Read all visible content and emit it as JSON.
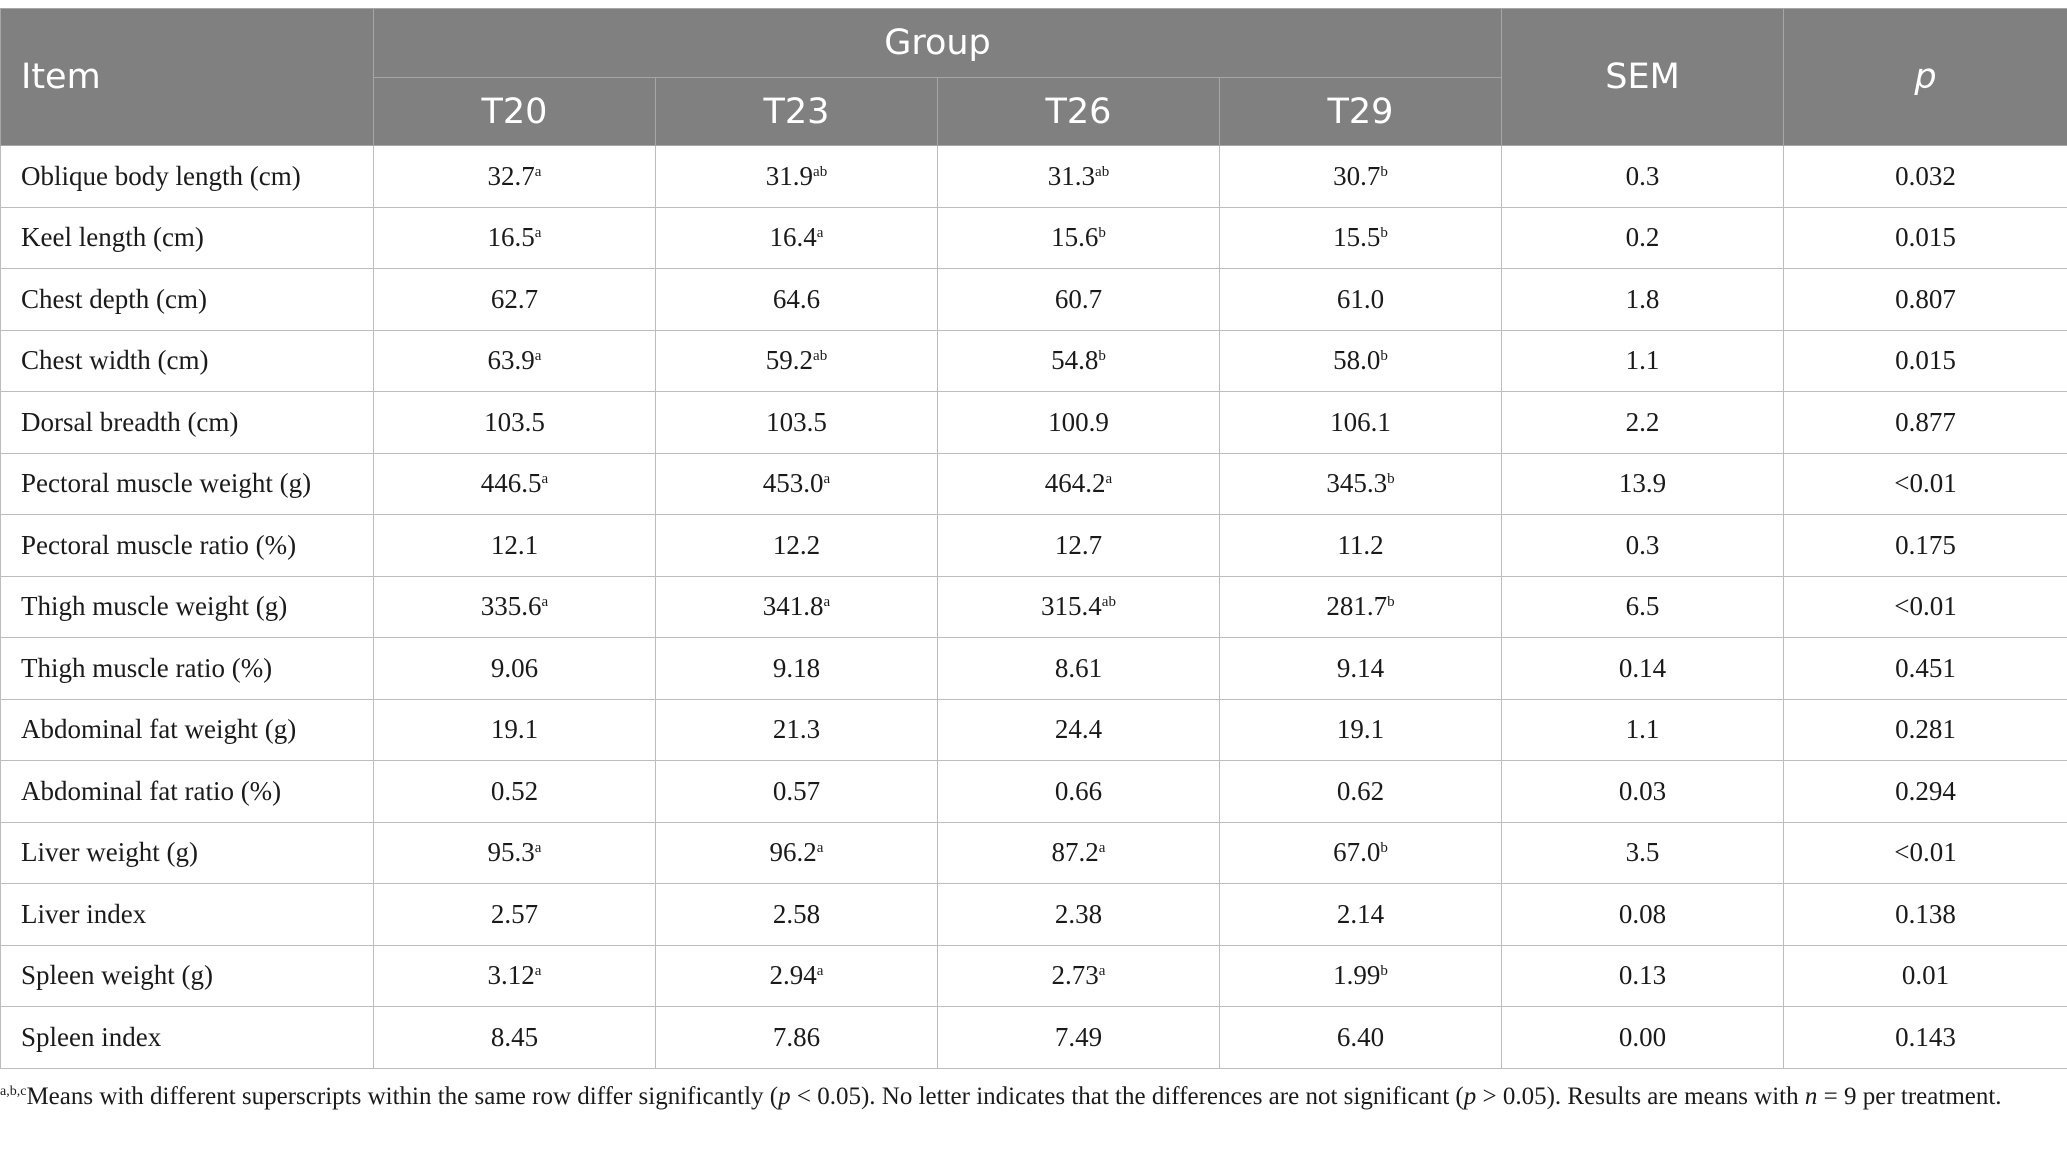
{
  "table": {
    "header": {
      "item": "Item",
      "group": "Group",
      "groups": [
        "T20",
        "T23",
        "T26",
        "T29"
      ],
      "sem": "SEM",
      "p": "p"
    },
    "rows": [
      {
        "item": "Oblique body length (cm)",
        "cells": [
          {
            "v": "32.7",
            "s": "a"
          },
          {
            "v": "31.9",
            "s": "ab"
          },
          {
            "v": "31.3",
            "s": "ab"
          },
          {
            "v": "30.7",
            "s": "b"
          }
        ],
        "sem": "0.3",
        "p": "0.032"
      },
      {
        "item": "Keel length (cm)",
        "cells": [
          {
            "v": "16.5",
            "s": "a"
          },
          {
            "v": "16.4",
            "s": "a"
          },
          {
            "v": "15.6",
            "s": "b"
          },
          {
            "v": "15.5",
            "s": "b"
          }
        ],
        "sem": "0.2",
        "p": "0.015"
      },
      {
        "item": "Chest depth (cm)",
        "cells": [
          {
            "v": "62.7",
            "s": ""
          },
          {
            "v": "64.6",
            "s": ""
          },
          {
            "v": "60.7",
            "s": ""
          },
          {
            "v": "61.0",
            "s": ""
          }
        ],
        "sem": "1.8",
        "p": "0.807"
      },
      {
        "item": "Chest width (cm)",
        "cells": [
          {
            "v": "63.9",
            "s": "a"
          },
          {
            "v": "59.2",
            "s": "ab"
          },
          {
            "v": "54.8",
            "s": "b"
          },
          {
            "v": "58.0",
            "s": "b"
          }
        ],
        "sem": "1.1",
        "p": "0.015"
      },
      {
        "item": "Dorsal breadth (cm)",
        "cells": [
          {
            "v": "103.5",
            "s": ""
          },
          {
            "v": "103.5",
            "s": ""
          },
          {
            "v": "100.9",
            "s": ""
          },
          {
            "v": "106.1",
            "s": ""
          }
        ],
        "sem": "2.2",
        "p": "0.877"
      },
      {
        "item": "Pectoral muscle weight (g)",
        "cells": [
          {
            "v": "446.5",
            "s": "a"
          },
          {
            "v": "453.0",
            "s": "a"
          },
          {
            "v": "464.2",
            "s": "a"
          },
          {
            "v": "345.3",
            "s": "b"
          }
        ],
        "sem": "13.9",
        "p": "<0.01"
      },
      {
        "item": "Pectoral muscle ratio (%)",
        "cells": [
          {
            "v": "12.1",
            "s": ""
          },
          {
            "v": "12.2",
            "s": ""
          },
          {
            "v": "12.7",
            "s": ""
          },
          {
            "v": "11.2",
            "s": ""
          }
        ],
        "sem": "0.3",
        "p": "0.175"
      },
      {
        "item": "Thigh muscle weight (g)",
        "cells": [
          {
            "v": "335.6",
            "s": "a"
          },
          {
            "v": "341.8",
            "s": "a"
          },
          {
            "v": "315.4",
            "s": "ab"
          },
          {
            "v": "281.7",
            "s": "b"
          }
        ],
        "sem": "6.5",
        "p": "<0.01"
      },
      {
        "item": "Thigh muscle ratio (%)",
        "cells": [
          {
            "v": "9.06",
            "s": ""
          },
          {
            "v": "9.18",
            "s": ""
          },
          {
            "v": "8.61",
            "s": ""
          },
          {
            "v": "9.14",
            "s": ""
          }
        ],
        "sem": "0.14",
        "p": "0.451"
      },
      {
        "item": "Abdominal fat weight (g)",
        "cells": [
          {
            "v": "19.1",
            "s": ""
          },
          {
            "v": "21.3",
            "s": ""
          },
          {
            "v": "24.4",
            "s": ""
          },
          {
            "v": "19.1",
            "s": ""
          }
        ],
        "sem": "1.1",
        "p": "0.281"
      },
      {
        "item": "Abdominal fat ratio (%)",
        "cells": [
          {
            "v": "0.52",
            "s": ""
          },
          {
            "v": "0.57",
            "s": ""
          },
          {
            "v": "0.66",
            "s": ""
          },
          {
            "v": "0.62",
            "s": ""
          }
        ],
        "sem": "0.03",
        "p": "0.294"
      },
      {
        "item": "Liver weight (g)",
        "cells": [
          {
            "v": "95.3",
            "s": "a"
          },
          {
            "v": "96.2",
            "s": "a"
          },
          {
            "v": "87.2",
            "s": "a"
          },
          {
            "v": "67.0",
            "s": "b"
          }
        ],
        "sem": "3.5",
        "p": "<0.01"
      },
      {
        "item": "Liver index",
        "cells": [
          {
            "v": "2.57",
            "s": ""
          },
          {
            "v": "2.58",
            "s": ""
          },
          {
            "v": "2.38",
            "s": ""
          },
          {
            "v": "2.14",
            "s": ""
          }
        ],
        "sem": "0.08",
        "p": "0.138"
      },
      {
        "item": "Spleen weight (g)",
        "cells": [
          {
            "v": "3.12",
            "s": "a"
          },
          {
            "v": "2.94",
            "s": "a"
          },
          {
            "v": "2.73",
            "s": "a"
          },
          {
            "v": "1.99",
            "s": "b"
          }
        ],
        "sem": "0.13",
        "p": "0.01"
      },
      {
        "item": "Spleen index",
        "cells": [
          {
            "v": "8.45",
            "s": ""
          },
          {
            "v": "7.86",
            "s": ""
          },
          {
            "v": "7.49",
            "s": ""
          },
          {
            "v": "6.40",
            "s": ""
          }
        ],
        "sem": "0.00",
        "p": "0.143"
      }
    ]
  },
  "footnote": {
    "superscript": "a,b,c",
    "t1": "Means with different superscripts within the same row differ significantly (",
    "p1": "p",
    "t2": " < 0.05). No letter indicates that the differences are not significant (",
    "p2": "p",
    "t3": " > 0.05). Results are means with ",
    "n": "n",
    "t4": " = 9 per treatment."
  }
}
